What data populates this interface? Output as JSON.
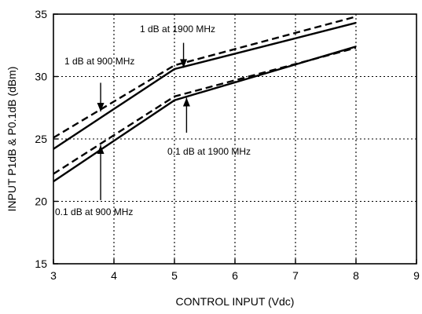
{
  "chart_data": {
    "type": "line",
    "xlabel": "CONTROL INPUT (Vdc)",
    "ylabel": "INPUT  P1dB & P0.1dB (dBm)",
    "xlim": [
      3,
      9
    ],
    "ylim": [
      15,
      35
    ],
    "xticks": [
      "3",
      "4",
      "5",
      "6",
      "7",
      "8",
      "9"
    ],
    "yticks": [
      "15",
      "20",
      "25",
      "30",
      "35"
    ],
    "grid": "dotted",
    "series": [
      {
        "name": "1 dB at 1900 MHz",
        "style": "solid",
        "color": "#000000",
        "x": [
          3,
          5,
          8
        ],
        "y": [
          24.2,
          30.6,
          34.3
        ]
      },
      {
        "name": "1 dB at 900 MHz",
        "style": "dashed",
        "color": "#000000",
        "x": [
          3,
          5,
          8
        ],
        "y": [
          25.1,
          30.9,
          34.8
        ]
      },
      {
        "name": "0.1 dB at 1900 MHz",
        "style": "solid",
        "color": "#000000",
        "x": [
          3,
          5,
          8
        ],
        "y": [
          21.6,
          28.1,
          32.4
        ]
      },
      {
        "name": "0.1 dB at 900 MHz",
        "style": "dashed",
        "color": "#000000",
        "x": [
          3,
          5,
          8
        ],
        "y": [
          22.2,
          28.4,
          32.3
        ]
      }
    ],
    "annotations": [
      {
        "text": "1 dB at 1900 MHz",
        "arrow_from": [
          5.15,
          32.7
        ],
        "arrow_to": [
          5.15,
          30.7
        ]
      },
      {
        "text": "1 dB at 900 MHz",
        "arrow_from": [
          3.78,
          29.5
        ],
        "arrow_to": [
          3.78,
          27.2
        ]
      },
      {
        "text": "0.1 dB at 1900 MHz",
        "arrow_from": [
          5.2,
          25.5
        ],
        "arrow_to": [
          5.2,
          28.3
        ]
      },
      {
        "text": "0.1 dB at 900 MHz",
        "arrow_from": [
          3.78,
          20.1
        ],
        "arrow_to": [
          3.78,
          24.5
        ]
      }
    ]
  }
}
